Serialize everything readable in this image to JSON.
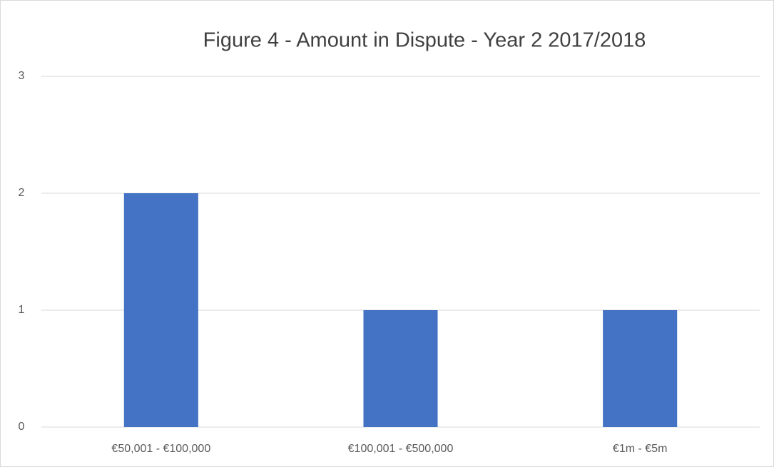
{
  "chart_data": {
    "type": "bar",
    "title": "Figure 4 - Amount in Dispute - Year 2 2017/2018",
    "categories": [
      "€50,001 - €100,000",
      "€100,001 - €500,000",
      "€1m - €5m"
    ],
    "values": [
      2,
      1,
      1
    ],
    "color": "#4472c4",
    "ylim": [
      0,
      3
    ],
    "yticks": [
      0,
      1,
      2,
      3
    ],
    "grid": true
  }
}
